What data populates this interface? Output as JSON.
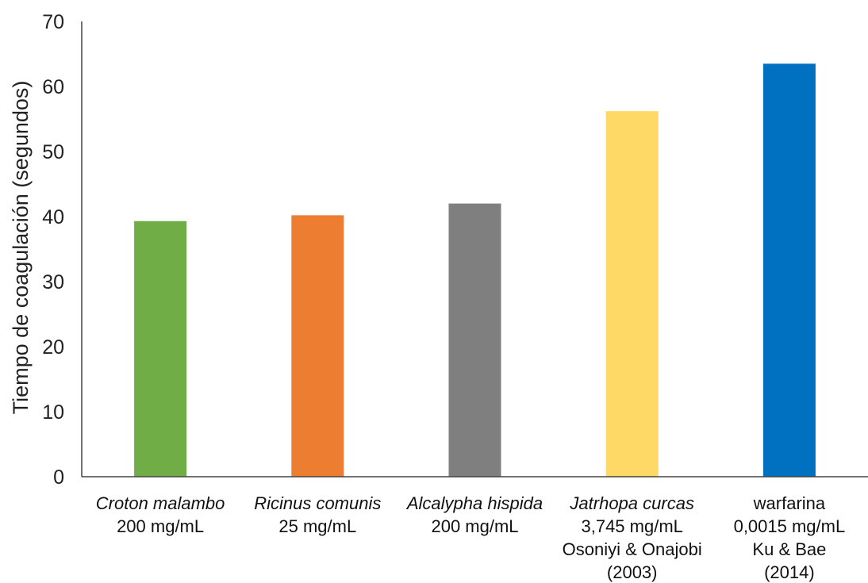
{
  "chart_data": {
    "type": "bar",
    "title": "",
    "xlabel": "",
    "ylabel": "Tiempo de coagulación (segundos)",
    "ylim": [
      0,
      70
    ],
    "yticks": [
      0,
      10,
      20,
      30,
      40,
      50,
      60,
      70
    ],
    "grid": false,
    "legend": "none",
    "categories": [
      {
        "lines": [
          {
            "text": "Croton malambo",
            "italic": true
          },
          {
            "text": "200 mg/mL",
            "italic": false
          }
        ]
      },
      {
        "lines": [
          {
            "text": "Ricinus comunis",
            "italic": true
          },
          {
            "text": "25 mg/mL",
            "italic": false
          }
        ]
      },
      {
        "lines": [
          {
            "text": "Alcalypha hispida",
            "italic": true
          },
          {
            "text": "200 mg/mL",
            "italic": false
          }
        ]
      },
      {
        "lines": [
          {
            "text": "Jatrhopa curcas",
            "italic": true
          },
          {
            "text": "3,745 mg/mL",
            "italic": false
          },
          {
            "text": "Osoniyi & Onajobi",
            "italic": false
          },
          {
            "text": "(2003)",
            "italic": false
          }
        ]
      },
      {
        "lines": [
          {
            "text": "warfarina",
            "italic": false
          },
          {
            "text": "0,0015 mg/mL",
            "italic": false
          },
          {
            "text": "Ku & Bae",
            "italic": false
          },
          {
            "text": "(2014)",
            "italic": false
          }
        ]
      }
    ],
    "values": [
      39.3,
      40.2,
      42.0,
      56.2,
      63.5
    ],
    "colors": [
      "#70AD47",
      "#ED7D31",
      "#7F7F7F",
      "#FFD966",
      "#0070C0"
    ]
  }
}
